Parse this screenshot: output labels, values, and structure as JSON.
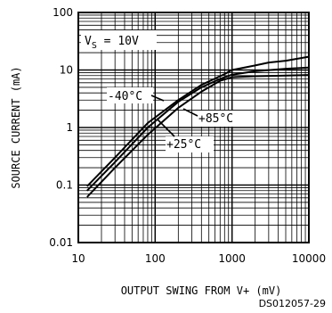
{
  "chart_data": {
    "type": "line",
    "title": "",
    "xlabel": "OUTPUT SWING FROM V+ (mV)",
    "ylabel": "SOURCE CURRENT (mA)",
    "xscale": "log",
    "yscale": "log",
    "xlim": [
      10,
      10000
    ],
    "ylim": [
      0.01,
      100
    ],
    "grid": true,
    "x_ticks": [
      "10",
      "100",
      "1000",
      "10000"
    ],
    "y_ticks": [
      "0.01",
      "0.1",
      "1",
      "10",
      "100"
    ],
    "condition": {
      "prefix": "V",
      "subscript": "S",
      "suffix": " = 10V"
    },
    "series": [
      {
        "name": "-40°C",
        "x": [
          13,
          30,
          80,
          200,
          400,
          800,
          1000,
          2000,
          3000,
          5000,
          10000
        ],
        "y": [
          0.095,
          0.3,
          1.2,
          3.0,
          5.5,
          8.5,
          10.0,
          12.0,
          13.5,
          14.5,
          17.0
        ]
      },
      {
        "name": "+25°C",
        "x": [
          13,
          30,
          80,
          200,
          400,
          700,
          1000,
          2000,
          5000,
          10000
        ],
        "y": [
          0.08,
          0.25,
          1.0,
          2.8,
          5.0,
          7.0,
          8.3,
          9.5,
          10.5,
          11.0
        ]
      },
      {
        "name": "+85°C",
        "x": [
          13,
          30,
          80,
          200,
          400,
          700,
          1000,
          2000,
          5000,
          10000
        ],
        "y": [
          0.062,
          0.2,
          0.75,
          2.2,
          4.2,
          6.5,
          7.5,
          7.8,
          8.0,
          8.2
        ]
      }
    ],
    "footer_code": "DS012057-29"
  }
}
